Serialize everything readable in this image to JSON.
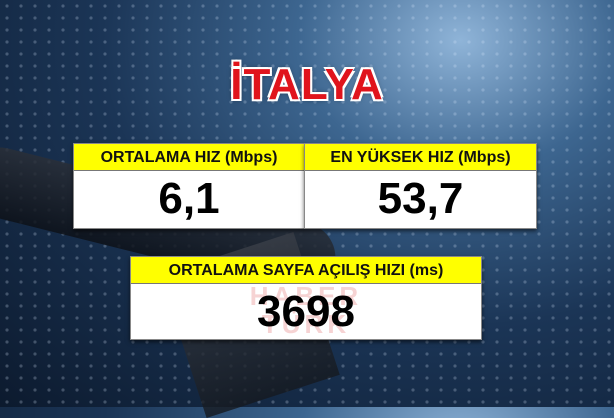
{
  "title": "İTALYA",
  "stats": [
    {
      "label": "ORTALAMA HIZ (Mbps)",
      "value": "6,1"
    },
    {
      "label": "EN YÜKSEK HIZ (Mbps)",
      "value": "53,7"
    },
    {
      "label": "ORTALAMA SAYFA AÇILIŞ HIZI (ms)",
      "value": "3698"
    }
  ],
  "watermark": "HABER TÜRK",
  "colors": {
    "title": "#e0141c",
    "header_bg": "#ffff00",
    "value_bg": "#ffffff"
  }
}
